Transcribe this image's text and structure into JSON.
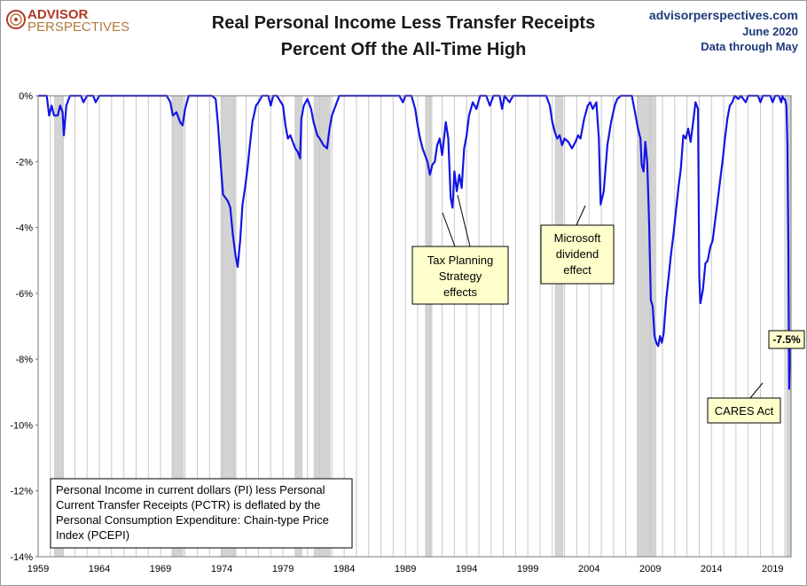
{
  "header": {
    "logo_top": "ADVISOR",
    "logo_bottom": "PERSPECTIVES",
    "title_line1": "Real Personal Income Less Transfer Receipts",
    "title_line2": "Percent Off the All-Time High",
    "site": "advisorperspectives.com",
    "date": "June 2020",
    "data_note": "Data through May"
  },
  "annotations": {
    "tax_planning": [
      "Tax Planning",
      "Strategy",
      "effects"
    ],
    "microsoft": [
      "Microsoft",
      "dividend",
      "effect"
    ],
    "cares": [
      "CARES Act"
    ],
    "last_value": "-7.5%"
  },
  "info_box": [
    "Personal Income in current dollars  (PI) less Personal",
    "Current Transfer Receipts (PCTR) is deflated by the",
    "Personal Consumption Expenditure: Chain-type Price",
    "Index (PCEPI)"
  ],
  "colors": {
    "line": "#1414e6",
    "recession": "#d3d3d3",
    "grid": "#c8c8c8",
    "note_fill": "#ffffcc",
    "logo_red": "#b1392a",
    "brand_blue": "#1f3a7a"
  },
  "chart_data": {
    "type": "line",
    "title": "Real Personal Income Less Transfer Receipts Percent Off the All-Time High",
    "xlabel": "",
    "ylabel": "",
    "xlim": [
      1959,
      2020.5
    ],
    "ylim": [
      -14,
      0
    ],
    "x_ticks": [
      "1959",
      "1964",
      "1969",
      "1974",
      "1979",
      "1984",
      "1989",
      "1994",
      "1999",
      "2004",
      "2009",
      "2014",
      "2019"
    ],
    "y_ticks": [
      "0%",
      "-2%",
      "-4%",
      "-6%",
      "-8%",
      "-10%",
      "-12%",
      "-14%"
    ],
    "recessions": [
      [
        1960.3,
        1961.1
      ],
      [
        1969.9,
        1970.9
      ],
      [
        1973.9,
        1975.2
      ],
      [
        1980.0,
        1980.6
      ],
      [
        1981.5,
        1982.9
      ],
      [
        1990.6,
        1991.2
      ],
      [
        2001.2,
        2001.9
      ],
      [
        2007.9,
        2009.5
      ],
      [
        2020.1,
        2020.5
      ]
    ],
    "series": [
      {
        "name": "",
        "points": [
          [
            1959.0,
            0
          ],
          [
            1959.7,
            0
          ],
          [
            1959.9,
            -0.6
          ],
          [
            1960.1,
            -0.3
          ],
          [
            1960.3,
            -0.6
          ],
          [
            1960.6,
            -0.6
          ],
          [
            1960.8,
            -0.3
          ],
          [
            1961.0,
            -0.5
          ],
          [
            1961.1,
            -1.2
          ],
          [
            1961.3,
            -0.3
          ],
          [
            1961.6,
            0
          ],
          [
            1962.5,
            0
          ],
          [
            1962.7,
            -0.2
          ],
          [
            1963.0,
            0
          ],
          [
            1963.5,
            0
          ],
          [
            1963.7,
            -0.2
          ],
          [
            1964.0,
            0
          ],
          [
            1969.5,
            0
          ],
          [
            1969.8,
            -0.2
          ],
          [
            1970.0,
            -0.6
          ],
          [
            1970.3,
            -0.5
          ],
          [
            1970.6,
            -0.8
          ],
          [
            1970.8,
            -0.9
          ],
          [
            1971.0,
            -0.4
          ],
          [
            1971.3,
            0
          ],
          [
            1973.2,
            0
          ],
          [
            1973.5,
            -0.1
          ],
          [
            1973.7,
            -0.9
          ],
          [
            1973.9,
            -2.0
          ],
          [
            1974.1,
            -3.0
          ],
          [
            1974.3,
            -3.1
          ],
          [
            1974.5,
            -3.2
          ],
          [
            1974.7,
            -3.4
          ],
          [
            1974.9,
            -4.2
          ],
          [
            1975.1,
            -4.8
          ],
          [
            1975.3,
            -5.2
          ],
          [
            1975.5,
            -4.4
          ],
          [
            1975.7,
            -3.3
          ],
          [
            1975.9,
            -2.8
          ],
          [
            1976.1,
            -2.2
          ],
          [
            1976.3,
            -1.5
          ],
          [
            1976.5,
            -0.8
          ],
          [
            1976.8,
            -0.3
          ],
          [
            1977.0,
            -0.2
          ],
          [
            1977.3,
            0
          ],
          [
            1977.8,
            0
          ],
          [
            1978.0,
            -0.3
          ],
          [
            1978.2,
            0
          ],
          [
            1978.5,
            0
          ],
          [
            1979.0,
            -0.3
          ],
          [
            1979.2,
            -0.9
          ],
          [
            1979.4,
            -1.3
          ],
          [
            1979.6,
            -1.2
          ],
          [
            1979.8,
            -1.4
          ],
          [
            1980.0,
            -1.6
          ],
          [
            1980.2,
            -1.7
          ],
          [
            1980.4,
            -1.9
          ],
          [
            1980.5,
            -0.7
          ],
          [
            1980.7,
            -0.3
          ],
          [
            1981.0,
            -0.1
          ],
          [
            1981.3,
            -0.4
          ],
          [
            1981.5,
            -0.8
          ],
          [
            1981.8,
            -1.2
          ],
          [
            1982.0,
            -1.3
          ],
          [
            1982.3,
            -1.5
          ],
          [
            1982.6,
            -1.6
          ],
          [
            1982.8,
            -1.0
          ],
          [
            1983.0,
            -0.6
          ],
          [
            1983.3,
            -0.3
          ],
          [
            1983.6,
            0
          ],
          [
            1988.5,
            0
          ],
          [
            1988.8,
            -0.2
          ],
          [
            1989.0,
            0
          ],
          [
            1989.5,
            0
          ],
          [
            1989.8,
            -0.4
          ],
          [
            1990.0,
            -0.9
          ],
          [
            1990.2,
            -1.3
          ],
          [
            1990.4,
            -1.6
          ],
          [
            1990.6,
            -1.8
          ],
          [
            1990.8,
            -2.0
          ],
          [
            1991.0,
            -2.4
          ],
          [
            1991.2,
            -2.1
          ],
          [
            1991.4,
            -2.0
          ],
          [
            1991.6,
            -1.5
          ],
          [
            1991.8,
            -1.3
          ],
          [
            1992.0,
            -1.8
          ],
          [
            1992.3,
            -0.8
          ],
          [
            1992.5,
            -1.3
          ],
          [
            1992.7,
            -3.1
          ],
          [
            1992.85,
            -3.4
          ],
          [
            1993.0,
            -2.3
          ],
          [
            1993.2,
            -2.9
          ],
          [
            1993.4,
            -2.4
          ],
          [
            1993.6,
            -2.8
          ],
          [
            1993.8,
            -1.6
          ],
          [
            1994.0,
            -1.2
          ],
          [
            1994.2,
            -0.6
          ],
          [
            1994.5,
            -0.2
          ],
          [
            1994.8,
            -0.4
          ],
          [
            1995.1,
            0
          ],
          [
            1995.6,
            0
          ],
          [
            1995.9,
            -0.3
          ],
          [
            1996.2,
            0
          ],
          [
            1996.7,
            0
          ],
          [
            1996.9,
            -0.4
          ],
          [
            1997.1,
            0
          ],
          [
            1997.5,
            -0.2
          ],
          [
            1997.8,
            0
          ],
          [
            2000.5,
            0
          ],
          [
            2000.8,
            -0.3
          ],
          [
            2001.0,
            -0.8
          ],
          [
            2001.2,
            -1.1
          ],
          [
            2001.4,
            -1.3
          ],
          [
            2001.6,
            -1.2
          ],
          [
            2001.8,
            -1.5
          ],
          [
            2002.0,
            -1.3
          ],
          [
            2002.3,
            -1.4
          ],
          [
            2002.6,
            -1.6
          ],
          [
            2002.9,
            -1.4
          ],
          [
            2003.1,
            -1.2
          ],
          [
            2003.3,
            -1.3
          ],
          [
            2003.6,
            -0.7
          ],
          [
            2003.9,
            -0.3
          ],
          [
            2004.1,
            -0.2
          ],
          [
            2004.3,
            -0.4
          ],
          [
            2004.6,
            -0.2
          ],
          [
            2004.8,
            -1.3
          ],
          [
            2004.95,
            -3.3
          ],
          [
            2005.2,
            -2.9
          ],
          [
            2005.5,
            -1.5
          ],
          [
            2005.8,
            -0.8
          ],
          [
            2006.1,
            -0.3
          ],
          [
            2006.3,
            -0.1
          ],
          [
            2006.6,
            0
          ],
          [
            2007.5,
            0
          ],
          [
            2007.8,
            -0.6
          ],
          [
            2008.0,
            -1.0
          ],
          [
            2008.2,
            -1.3
          ],
          [
            2008.3,
            -2.1
          ],
          [
            2008.45,
            -2.3
          ],
          [
            2008.6,
            -1.4
          ],
          [
            2008.75,
            -2.0
          ],
          [
            2008.9,
            -3.8
          ],
          [
            2009.05,
            -6.2
          ],
          [
            2009.2,
            -6.4
          ],
          [
            2009.35,
            -7.3
          ],
          [
            2009.5,
            -7.5
          ],
          [
            2009.65,
            -7.6
          ],
          [
            2009.8,
            -7.3
          ],
          [
            2009.95,
            -7.5
          ],
          [
            2010.1,
            -7.2
          ],
          [
            2010.3,
            -6.2
          ],
          [
            2010.5,
            -5.5
          ],
          [
            2010.7,
            -4.8
          ],
          [
            2010.9,
            -4.2
          ],
          [
            2011.1,
            -3.5
          ],
          [
            2011.3,
            -2.8
          ],
          [
            2011.5,
            -2.2
          ],
          [
            2011.7,
            -1.2
          ],
          [
            2011.9,
            -1.3
          ],
          [
            2012.1,
            -1.0
          ],
          [
            2012.3,
            -1.4
          ],
          [
            2012.5,
            -0.8
          ],
          [
            2012.7,
            -0.2
          ],
          [
            2012.9,
            -0.4
          ],
          [
            2013.0,
            -5.5
          ],
          [
            2013.1,
            -6.3
          ],
          [
            2013.3,
            -5.9
          ],
          [
            2013.5,
            -5.1
          ],
          [
            2013.7,
            -5.0
          ],
          [
            2013.9,
            -4.6
          ],
          [
            2014.1,
            -4.4
          ],
          [
            2014.3,
            -3.8
          ],
          [
            2014.5,
            -3.2
          ],
          [
            2014.7,
            -2.6
          ],
          [
            2014.9,
            -2.0
          ],
          [
            2015.1,
            -1.3
          ],
          [
            2015.3,
            -0.7
          ],
          [
            2015.5,
            -0.3
          ],
          [
            2015.7,
            -0.2
          ],
          [
            2015.9,
            0
          ],
          [
            2016.2,
            -0.1
          ],
          [
            2016.4,
            0
          ],
          [
            2016.8,
            -0.2
          ],
          [
            2017.0,
            0
          ],
          [
            2017.8,
            0
          ],
          [
            2018.0,
            -0.2
          ],
          [
            2018.2,
            0
          ],
          [
            2018.8,
            0
          ],
          [
            2019.0,
            -0.2
          ],
          [
            2019.2,
            0
          ],
          [
            2019.5,
            0
          ],
          [
            2019.7,
            -0.2
          ],
          [
            2019.8,
            0
          ],
          [
            2019.9,
            -0.1
          ],
          [
            2020.0,
            -0.1
          ],
          [
            2020.12,
            -0.3
          ],
          [
            2020.2,
            -1.5
          ],
          [
            2020.28,
            -4.5
          ],
          [
            2020.35,
            -8.9
          ],
          [
            2020.42,
            -7.5
          ]
        ]
      }
    ]
  }
}
